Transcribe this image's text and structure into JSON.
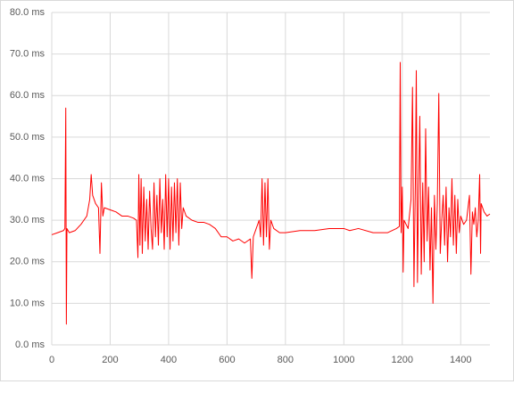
{
  "chart_data": {
    "type": "line",
    "x": [
      0,
      20,
      40,
      45,
      48,
      50,
      52,
      60,
      80,
      100,
      110,
      120,
      130,
      135,
      140,
      150,
      160,
      165,
      170,
      175,
      180,
      200,
      220,
      240,
      260,
      280,
      290,
      295,
      298,
      302,
      306,
      310,
      315,
      320,
      325,
      330,
      335,
      340,
      345,
      350,
      355,
      360,
      365,
      370,
      375,
      380,
      385,
      390,
      395,
      400,
      405,
      410,
      415,
      420,
      425,
      430,
      435,
      440,
      445,
      450,
      460,
      480,
      500,
      520,
      540,
      560,
      580,
      600,
      620,
      640,
      660,
      680,
      685,
      690,
      700,
      710,
      715,
      720,
      725,
      730,
      735,
      740,
      745,
      750,
      760,
      780,
      800,
      850,
      900,
      950,
      1000,
      1020,
      1050,
      1100,
      1150,
      1180,
      1190,
      1193,
      1196,
      1200,
      1203,
      1206,
      1220,
      1230,
      1235,
      1240,
      1245,
      1248,
      1252,
      1256,
      1260,
      1265,
      1270,
      1275,
      1280,
      1285,
      1290,
      1295,
      1300,
      1305,
      1310,
      1315,
      1320,
      1325,
      1330,
      1335,
      1340,
      1345,
      1350,
      1355,
      1360,
      1365,
      1370,
      1375,
      1380,
      1385,
      1390,
      1395,
      1400,
      1410,
      1420,
      1430,
      1435,
      1440,
      1445,
      1450,
      1455,
      1460,
      1465,
      1468,
      1470,
      1480,
      1490,
      1500
    ],
    "series": [
      {
        "color": "#ff0000",
        "values": [
          26.5,
          27,
          27.5,
          28,
          57,
          5,
          28,
          27,
          27.5,
          29,
          30,
          31,
          35,
          41,
          36,
          34,
          33,
          22,
          39,
          31,
          33,
          32.5,
          32,
          31,
          31,
          30.5,
          30,
          21,
          41,
          24,
          40,
          22,
          38,
          25,
          35,
          23,
          37,
          28,
          23,
          39,
          26,
          36,
          24,
          40,
          27,
          35,
          23,
          41,
          26,
          40,
          23,
          38,
          25,
          39,
          27,
          40,
          24,
          39,
          28,
          33,
          31,
          30,
          29.5,
          29.5,
          29,
          28,
          26,
          26,
          25,
          25.5,
          24.5,
          25.5,
          16,
          26,
          28,
          30,
          26,
          40,
          24,
          39,
          26,
          40,
          23,
          30,
          28,
          27,
          27,
          27.5,
          27.5,
          28,
          28,
          27.5,
          28,
          27,
          27,
          28,
          28.5,
          68,
          27,
          38,
          17.5,
          30,
          28,
          35,
          62,
          14,
          40,
          66,
          15,
          38,
          55,
          17,
          39,
          20,
          52,
          25,
          38,
          18,
          33,
          10,
          36,
          23,
          34,
          60.5,
          22,
          30,
          36,
          24,
          38,
          20,
          33,
          26,
          40,
          24,
          36,
          22,
          35,
          27,
          31,
          29,
          30,
          36,
          17,
          32,
          29,
          33,
          26,
          30,
          41,
          22,
          34,
          32,
          31,
          31.5
        ]
      }
    ],
    "xlim": [
      0,
      1500
    ],
    "xticks": [
      0,
      200,
      400,
      600,
      800,
      1000,
      1200,
      1400
    ],
    "ylim": [
      0,
      80
    ],
    "yticks": [
      {
        "value": 0,
        "label": "0.0 ms"
      },
      {
        "value": 10,
        "label": "10.0 ms"
      },
      {
        "value": 20,
        "label": "20.0 ms"
      },
      {
        "value": 30,
        "label": "30.0 ms"
      },
      {
        "value": 40,
        "label": "40.0 ms"
      },
      {
        "value": 50,
        "label": "50.0 ms"
      },
      {
        "value": 60,
        "label": "60.0 ms"
      },
      {
        "value": 70,
        "label": "70.0 ms"
      },
      {
        "value": 80,
        "label": "80.0 ms"
      }
    ],
    "grid": true
  }
}
